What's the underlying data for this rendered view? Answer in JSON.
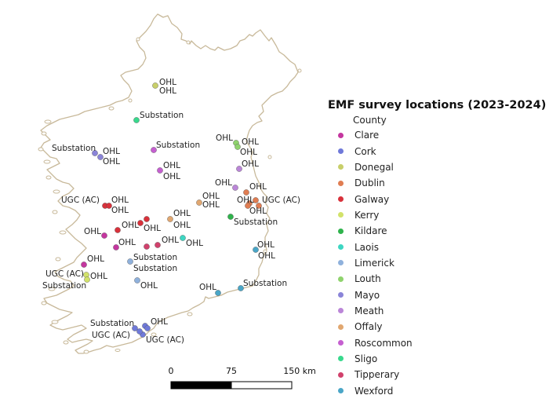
{
  "legend": {
    "title": "EMF survey locations (2023-2024)",
    "subtitle": "County",
    "items": [
      {
        "label": "Clare",
        "color": "#c4369f"
      },
      {
        "label": "Cork",
        "color": "#6f79d9"
      },
      {
        "label": "Donegal",
        "color": "#c8cf6a"
      },
      {
        "label": "Dublin",
        "color": "#e07d52"
      },
      {
        "label": "Galway",
        "color": "#d8313b"
      },
      {
        "label": "Kerry",
        "color": "#d2e26a"
      },
      {
        "label": "Kildare",
        "color": "#2fb34c"
      },
      {
        "label": "Laois",
        "color": "#3dd6c2"
      },
      {
        "label": "Limerick",
        "color": "#8fb1dc"
      },
      {
        "label": "Louth",
        "color": "#8fd36d"
      },
      {
        "label": "Mayo",
        "color": "#8a84d8"
      },
      {
        "label": "Meath",
        "color": "#bb86d8"
      },
      {
        "label": "Offaly",
        "color": "#e1a770"
      },
      {
        "label": "Roscommon",
        "color": "#c55fd0"
      },
      {
        "label": "Sligo",
        "color": "#38d98d"
      },
      {
        "label": "Tipperary",
        "color": "#d1416c"
      },
      {
        "label": "Wexford",
        "color": "#4aa6c7"
      }
    ]
  },
  "scale": {
    "ticks": [
      "0",
      "75",
      "150 km"
    ]
  },
  "map_labels": {
    "ohl": "OHL",
    "substation": "Substation",
    "ugc": "UGC (AC)"
  }
}
